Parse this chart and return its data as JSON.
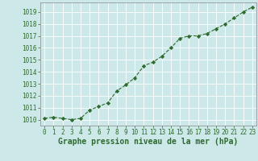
{
  "x": [
    0,
    1,
    2,
    3,
    4,
    5,
    6,
    7,
    8,
    9,
    10,
    11,
    12,
    13,
    14,
    15,
    16,
    17,
    18,
    19,
    20,
    21,
    22,
    23
  ],
  "y": [
    1010.1,
    1010.2,
    1010.1,
    1010.0,
    1010.1,
    1010.8,
    1011.1,
    1011.4,
    1012.4,
    1012.9,
    1013.5,
    1014.5,
    1014.8,
    1015.3,
    1016.0,
    1016.8,
    1017.0,
    1017.0,
    1017.2,
    1017.6,
    1018.0,
    1018.5,
    1019.0,
    1019.4
  ],
  "xlim": [
    -0.5,
    23.5
  ],
  "ylim": [
    1009.5,
    1019.8
  ],
  "yticks": [
    1010,
    1011,
    1012,
    1013,
    1014,
    1015,
    1016,
    1017,
    1018,
    1019
  ],
  "xticks": [
    0,
    1,
    2,
    3,
    4,
    5,
    6,
    7,
    8,
    9,
    10,
    11,
    12,
    13,
    14,
    15,
    16,
    17,
    18,
    19,
    20,
    21,
    22,
    23
  ],
  "xlabel": "Graphe pression niveau de la mer (hPa)",
  "line_color": "#2d6a2d",
  "marker": "D",
  "marker_size": 2.2,
  "bg_color": "#cce8e8",
  "grid_color": "#ffffff",
  "tick_label_fontsize": 5.5,
  "xlabel_fontsize": 7.0,
  "spine_color": "#888888"
}
